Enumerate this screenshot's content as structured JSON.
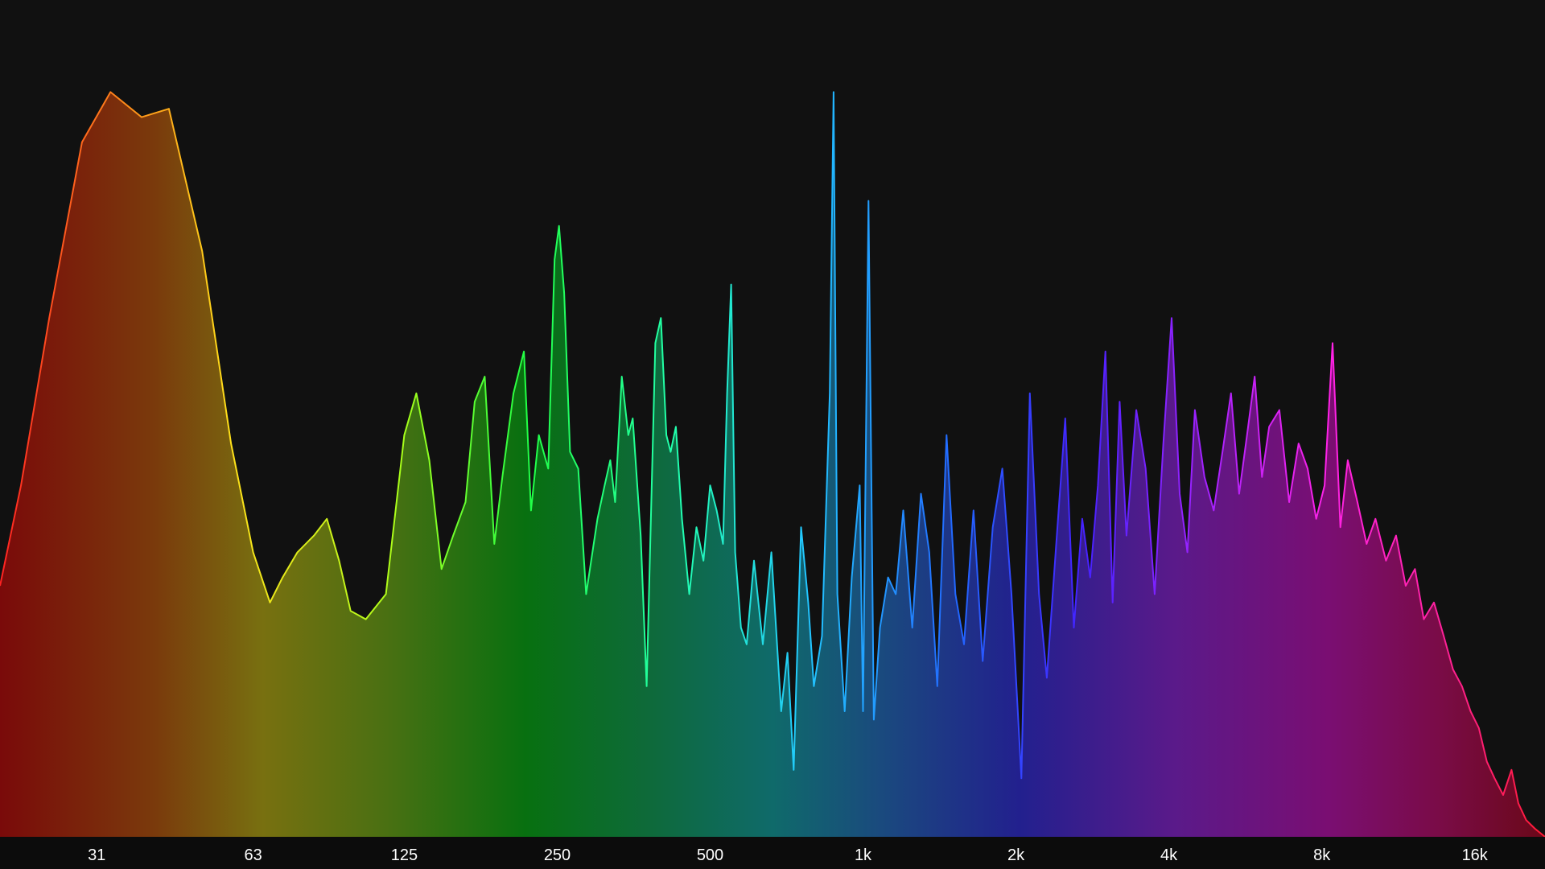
{
  "chart_data": {
    "type": "area",
    "title": "",
    "xlabel": "",
    "ylabel": "",
    "x_scale": "log",
    "x_unit": "Hz",
    "xlim": [
      20,
      22000
    ],
    "ylim": [
      0,
      1
    ],
    "grid": false,
    "legend": "none",
    "x_ticks": [
      {
        "value": 31,
        "label": "31"
      },
      {
        "value": 63,
        "label": "63"
      },
      {
        "value": 125,
        "label": "125"
      },
      {
        "value": 250,
        "label": "250"
      },
      {
        "value": 500,
        "label": "500"
      },
      {
        "value": 1000,
        "label": "1k"
      },
      {
        "value": 2000,
        "label": "2k"
      },
      {
        "value": 4000,
        "label": "4k"
      },
      {
        "value": 8000,
        "label": "8k"
      },
      {
        "value": 16000,
        "label": "16k"
      }
    ],
    "series": [
      {
        "points": [
          [
            20,
            0.3
          ],
          [
            22,
            0.42
          ],
          [
            25,
            0.62
          ],
          [
            29,
            0.83
          ],
          [
            33,
            0.89
          ],
          [
            38,
            0.86
          ],
          [
            43,
            0.87
          ],
          [
            50,
            0.7
          ],
          [
            57,
            0.47
          ],
          [
            63,
            0.34
          ],
          [
            68,
            0.28
          ],
          [
            72,
            0.31
          ],
          [
            77,
            0.34
          ],
          [
            83,
            0.36
          ],
          [
            88,
            0.38
          ],
          [
            93,
            0.33
          ],
          [
            98,
            0.27
          ],
          [
            105,
            0.26
          ],
          [
            115,
            0.29
          ],
          [
            125,
            0.48
          ],
          [
            132,
            0.53
          ],
          [
            140,
            0.45
          ],
          [
            148,
            0.32
          ],
          [
            156,
            0.36
          ],
          [
            165,
            0.4
          ],
          [
            172,
            0.52
          ],
          [
            180,
            0.55
          ],
          [
            188,
            0.35
          ],
          [
            195,
            0.43
          ],
          [
            205,
            0.53
          ],
          [
            215,
            0.58
          ],
          [
            222,
            0.39
          ],
          [
            230,
            0.48
          ],
          [
            240,
            0.44
          ],
          [
            247,
            0.69
          ],
          [
            252,
            0.73
          ],
          [
            258,
            0.65
          ],
          [
            265,
            0.46
          ],
          [
            275,
            0.44
          ],
          [
            285,
            0.29
          ],
          [
            300,
            0.38
          ],
          [
            310,
            0.42
          ],
          [
            318,
            0.45
          ],
          [
            325,
            0.4
          ],
          [
            335,
            0.55
          ],
          [
            345,
            0.48
          ],
          [
            352,
            0.5
          ],
          [
            365,
            0.36
          ],
          [
            375,
            0.18
          ],
          [
            390,
            0.59
          ],
          [
            400,
            0.62
          ],
          [
            410,
            0.48
          ],
          [
            418,
            0.46
          ],
          [
            428,
            0.49
          ],
          [
            440,
            0.38
          ],
          [
            455,
            0.29
          ],
          [
            470,
            0.37
          ],
          [
            485,
            0.33
          ],
          [
            500,
            0.42
          ],
          [
            515,
            0.39
          ],
          [
            530,
            0.35
          ],
          [
            540,
            0.53
          ],
          [
            550,
            0.66
          ],
          [
            560,
            0.34
          ],
          [
            575,
            0.25
          ],
          [
            590,
            0.23
          ],
          [
            610,
            0.33
          ],
          [
            635,
            0.23
          ],
          [
            660,
            0.34
          ],
          [
            690,
            0.15
          ],
          [
            710,
            0.22
          ],
          [
            730,
            0.08
          ],
          [
            755,
            0.37
          ],
          [
            780,
            0.28
          ],
          [
            800,
            0.18
          ],
          [
            830,
            0.24
          ],
          [
            860,
            0.53
          ],
          [
            875,
            0.89
          ],
          [
            890,
            0.29
          ],
          [
            920,
            0.15
          ],
          [
            950,
            0.31
          ],
          [
            985,
            0.42
          ],
          [
            1000,
            0.15
          ],
          [
            1025,
            0.76
          ],
          [
            1050,
            0.14
          ],
          [
            1080,
            0.25
          ],
          [
            1120,
            0.31
          ],
          [
            1160,
            0.29
          ],
          [
            1200,
            0.39
          ],
          [
            1250,
            0.25
          ],
          [
            1300,
            0.41
          ],
          [
            1350,
            0.34
          ],
          [
            1400,
            0.18
          ],
          [
            1460,
            0.48
          ],
          [
            1520,
            0.29
          ],
          [
            1580,
            0.23
          ],
          [
            1650,
            0.39
          ],
          [
            1720,
            0.21
          ],
          [
            1800,
            0.37
          ],
          [
            1880,
            0.44
          ],
          [
            1960,
            0.29
          ],
          [
            2050,
            0.07
          ],
          [
            2130,
            0.53
          ],
          [
            2220,
            0.29
          ],
          [
            2300,
            0.19
          ],
          [
            2400,
            0.35
          ],
          [
            2500,
            0.5
          ],
          [
            2600,
            0.25
          ],
          [
            2700,
            0.38
          ],
          [
            2800,
            0.31
          ],
          [
            2900,
            0.42
          ],
          [
            3000,
            0.58
          ],
          [
            3100,
            0.28
          ],
          [
            3200,
            0.52
          ],
          [
            3300,
            0.36
          ],
          [
            3450,
            0.51
          ],
          [
            3600,
            0.44
          ],
          [
            3750,
            0.29
          ],
          [
            3900,
            0.47
          ],
          [
            4050,
            0.62
          ],
          [
            4200,
            0.41
          ],
          [
            4350,
            0.34
          ],
          [
            4500,
            0.51
          ],
          [
            4700,
            0.43
          ],
          [
            4900,
            0.39
          ],
          [
            5100,
            0.46
          ],
          [
            5300,
            0.53
          ],
          [
            5500,
            0.41
          ],
          [
            5700,
            0.48
          ],
          [
            5900,
            0.55
          ],
          [
            6100,
            0.43
          ],
          [
            6300,
            0.49
          ],
          [
            6600,
            0.51
          ],
          [
            6900,
            0.4
          ],
          [
            7200,
            0.47
          ],
          [
            7500,
            0.44
          ],
          [
            7800,
            0.38
          ],
          [
            8100,
            0.42
          ],
          [
            8400,
            0.59
          ],
          [
            8700,
            0.37
          ],
          [
            9000,
            0.45
          ],
          [
            9400,
            0.4
          ],
          [
            9800,
            0.35
          ],
          [
            10200,
            0.38
          ],
          [
            10700,
            0.33
          ],
          [
            11200,
            0.36
          ],
          [
            11700,
            0.3
          ],
          [
            12200,
            0.32
          ],
          [
            12700,
            0.26
          ],
          [
            13300,
            0.28
          ],
          [
            13900,
            0.24
          ],
          [
            14500,
            0.2
          ],
          [
            15100,
            0.18
          ],
          [
            15700,
            0.15
          ],
          [
            16300,
            0.13
          ],
          [
            16900,
            0.09
          ],
          [
            17500,
            0.07
          ],
          [
            18200,
            0.05
          ],
          [
            18900,
            0.08
          ],
          [
            19500,
            0.04
          ],
          [
            20200,
            0.02
          ],
          [
            21000,
            0.01
          ],
          [
            22000,
            0.0
          ]
        ]
      }
    ]
  }
}
